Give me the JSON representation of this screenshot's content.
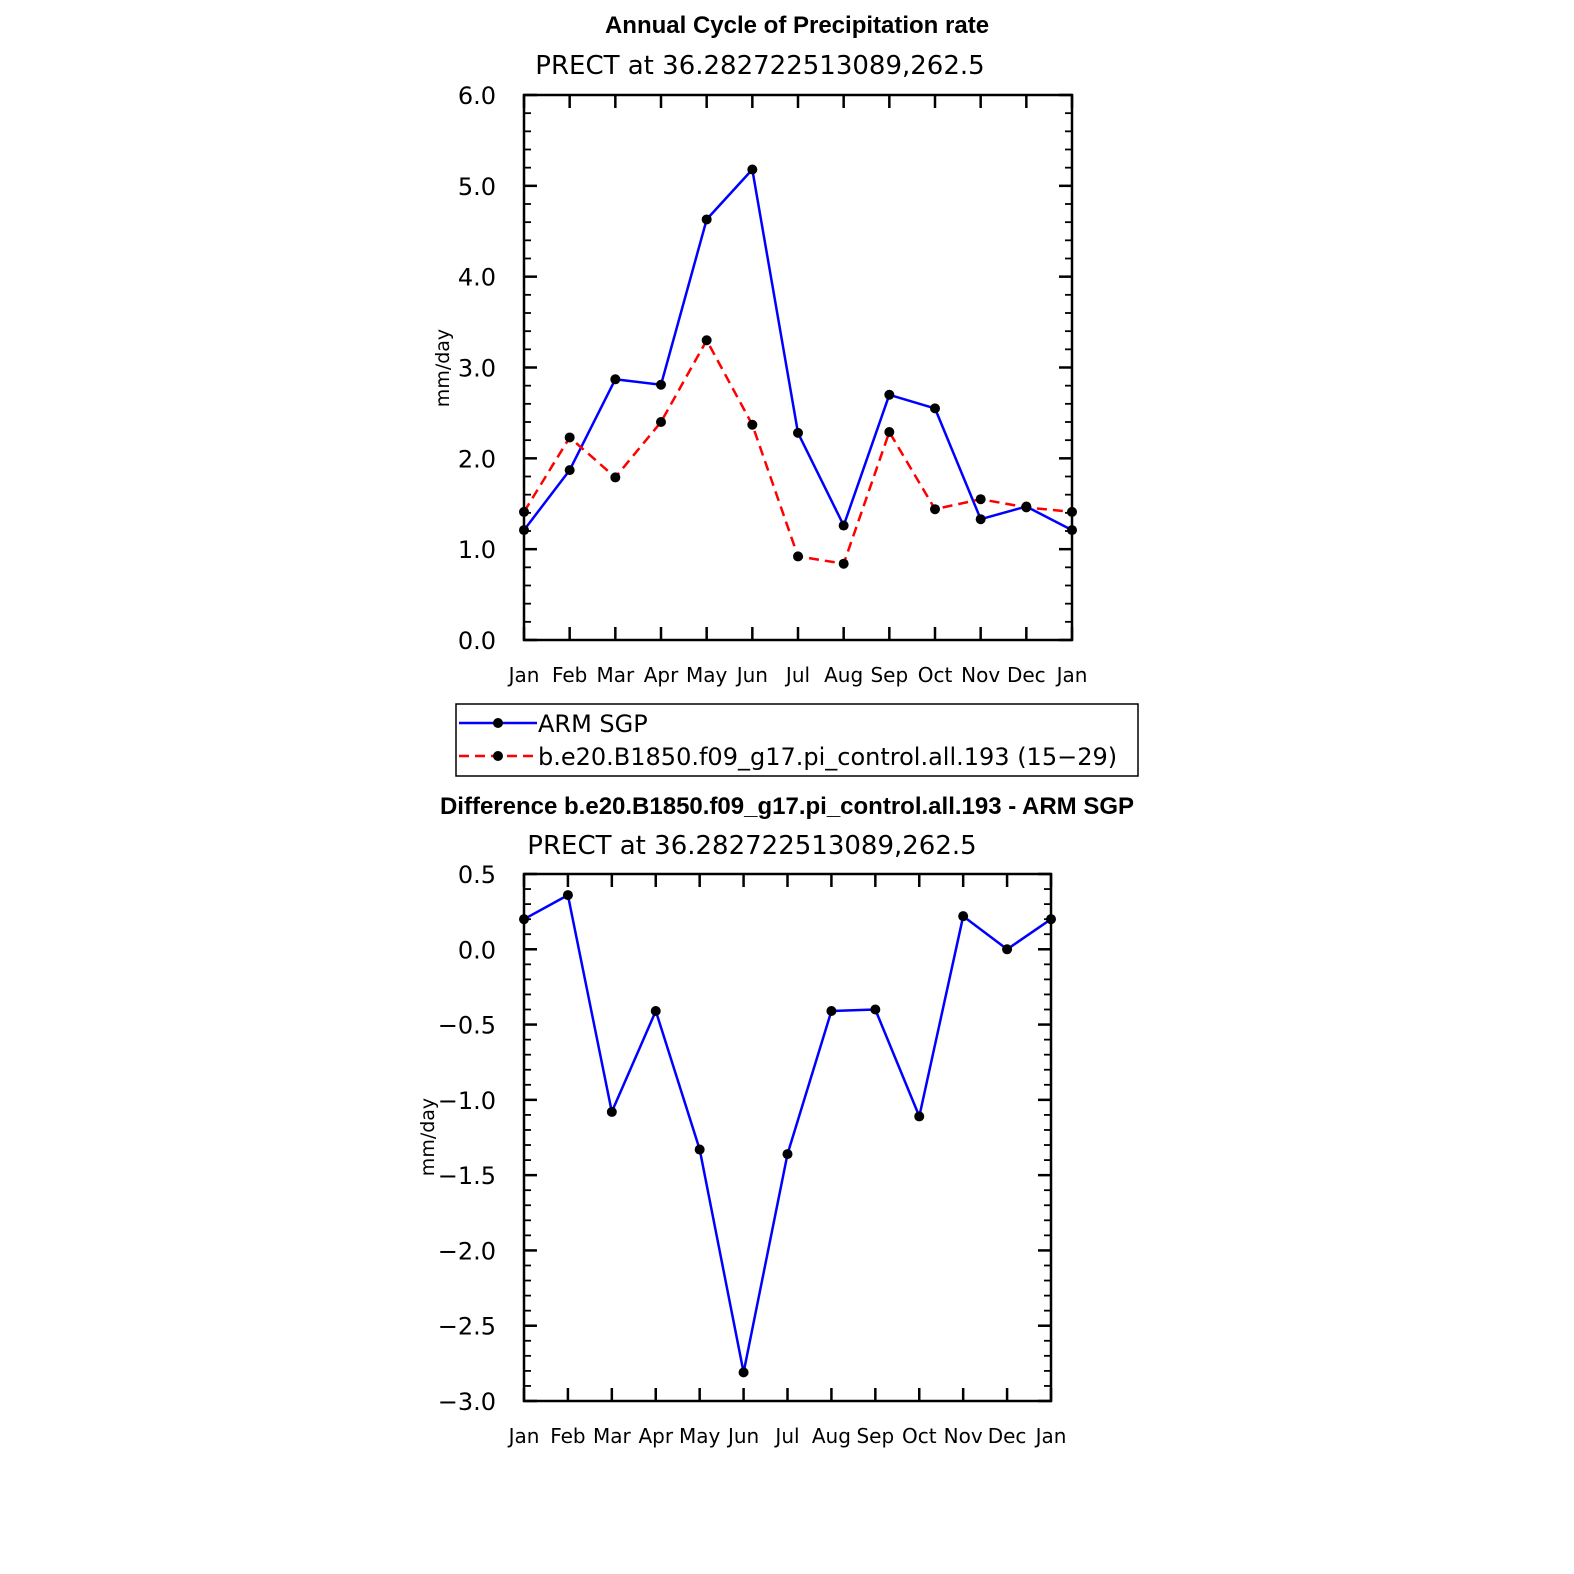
{
  "chart_data": [
    {
      "type": "line",
      "title": "Annual Cycle of Precipitation rate",
      "subtitle": "PRECT at 36.282722513089,262.5",
      "ylabel": "mm/day",
      "xlabel": "",
      "categories": [
        "Jan",
        "Feb",
        "Mar",
        "Apr",
        "May",
        "Jun",
        "Jul",
        "Aug",
        "Sep",
        "Oct",
        "Nov",
        "Dec",
        "Jan"
      ],
      "ylim": [
        0.0,
        6.0
      ],
      "yticks": [
        "0.0",
        "1.0",
        "2.0",
        "3.0",
        "4.0",
        "5.0",
        "6.0"
      ],
      "series": [
        {
          "name": "ARM SGP",
          "color": "#0000ff",
          "dash": "solid",
          "values": [
            1.21,
            1.87,
            2.87,
            2.81,
            4.63,
            5.18,
            2.28,
            1.26,
            2.7,
            2.55,
            1.33,
            1.47,
            1.21
          ]
        },
        {
          "name": "b.e20.B1850.f09_g17.pi_control.all.193 (15−29)",
          "color": "#ff0000",
          "dash": "dashed",
          "values": [
            1.41,
            2.23,
            1.79,
            2.4,
            3.3,
            2.37,
            0.92,
            0.84,
            2.29,
            1.44,
            1.55,
            1.46,
            1.41
          ]
        }
      ]
    },
    {
      "type": "line",
      "title": "Difference b.e20.B1850.f09_g17.pi_control.all.193 - ARM SGP",
      "subtitle": "PRECT at 36.282722513089,262.5",
      "ylabel": "mm/day",
      "xlabel": "",
      "categories": [
        "Jan",
        "Feb",
        "Mar",
        "Apr",
        "May",
        "Jun",
        "Jul",
        "Aug",
        "Sep",
        "Oct",
        "Nov",
        "Dec",
        "Jan"
      ],
      "ylim": [
        -3.0,
        0.5
      ],
      "yticks": [
        "−3.0",
        "−2.5",
        "−2.0",
        "−1.5",
        "−1.0",
        "−0.5",
        "0.0",
        "0.5"
      ],
      "series": [
        {
          "name": "Difference",
          "color": "#0000ff",
          "dash": "solid",
          "values": [
            0.2,
            0.36,
            -1.08,
            -0.41,
            -1.33,
            -2.81,
            -1.36,
            -0.41,
            -0.4,
            -1.11,
            0.22,
            0.0,
            0.2
          ]
        }
      ]
    }
  ]
}
